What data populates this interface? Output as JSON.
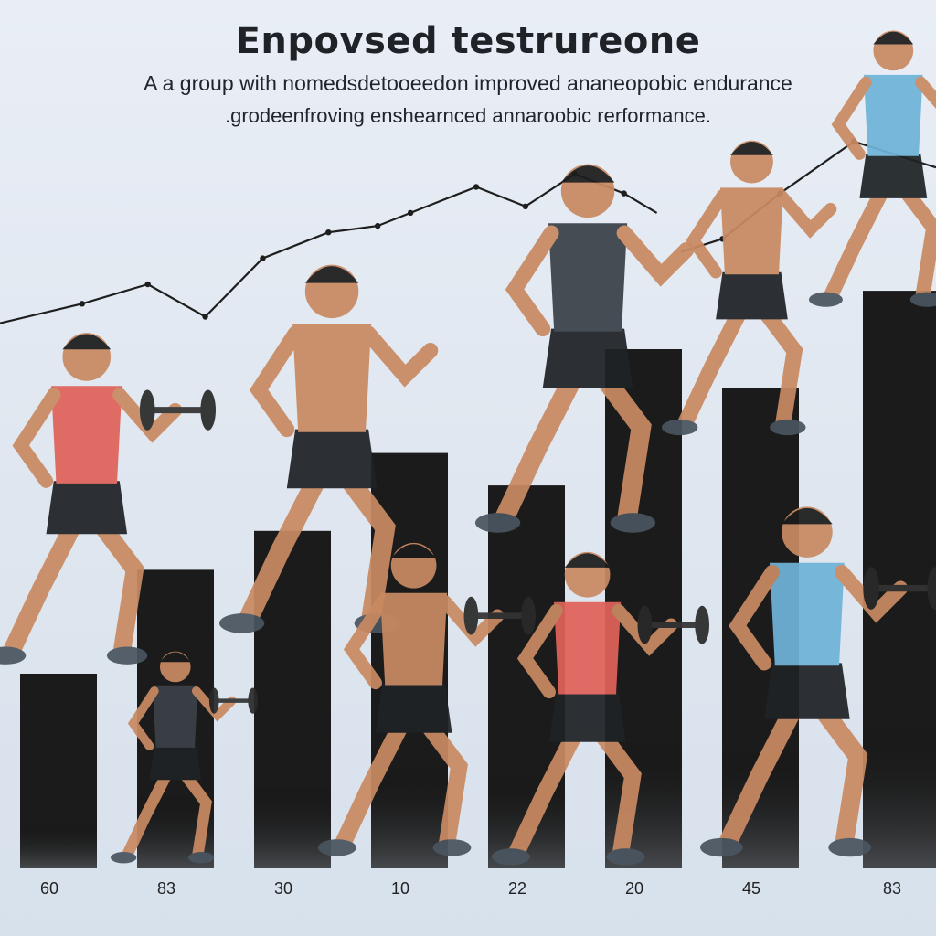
{
  "header": {
    "title": "Enpovsed testrureone",
    "subtitle_line1": "A a group with nomedsdetooeedon improved ananeopobic endurance",
    "subtitle_line2": ".grodeenfroving enshearnced annaroobic rerformance."
  },
  "colors": {
    "bar": "#1b1b1b",
    "line": "#1e1e1e",
    "background": "#e3e9f2",
    "skin": "#c98a62",
    "shirt_blue": "#6fb3d8",
    "shirt_red": "#e0625a",
    "shorts": "#1f2326"
  },
  "chart_data": {
    "type": "bar",
    "categories": [
      "60",
      "83",
      "30",
      "10",
      "22",
      "20",
      "45",
      "83"
    ],
    "values": [
      30,
      46,
      52,
      64,
      59,
      80,
      74,
      89
    ],
    "ylim": [
      0,
      100
    ],
    "xlabel": "",
    "ylabel": "",
    "grid": false,
    "legend": "none",
    "overlay_line": {
      "type": "line",
      "segments": [
        [
          [
            0,
            84
          ],
          [
            1,
            87
          ],
          [
            1.8,
            90
          ],
          [
            2.5,
            85
          ],
          [
            3.2,
            94
          ],
          [
            4.0,
            98
          ],
          [
            4.6,
            99
          ],
          [
            5.0,
            101
          ],
          [
            5.8,
            105
          ],
          [
            6.4,
            102
          ],
          [
            7.0,
            107
          ],
          [
            7.6,
            104
          ],
          [
            8.0,
            101
          ]
        ],
        [
          [
            8.3,
            95
          ],
          [
            8.8,
            97
          ],
          [
            9.5,
            104
          ],
          [
            10.4,
            112
          ],
          [
            11.4,
            108
          ]
        ]
      ]
    }
  }
}
